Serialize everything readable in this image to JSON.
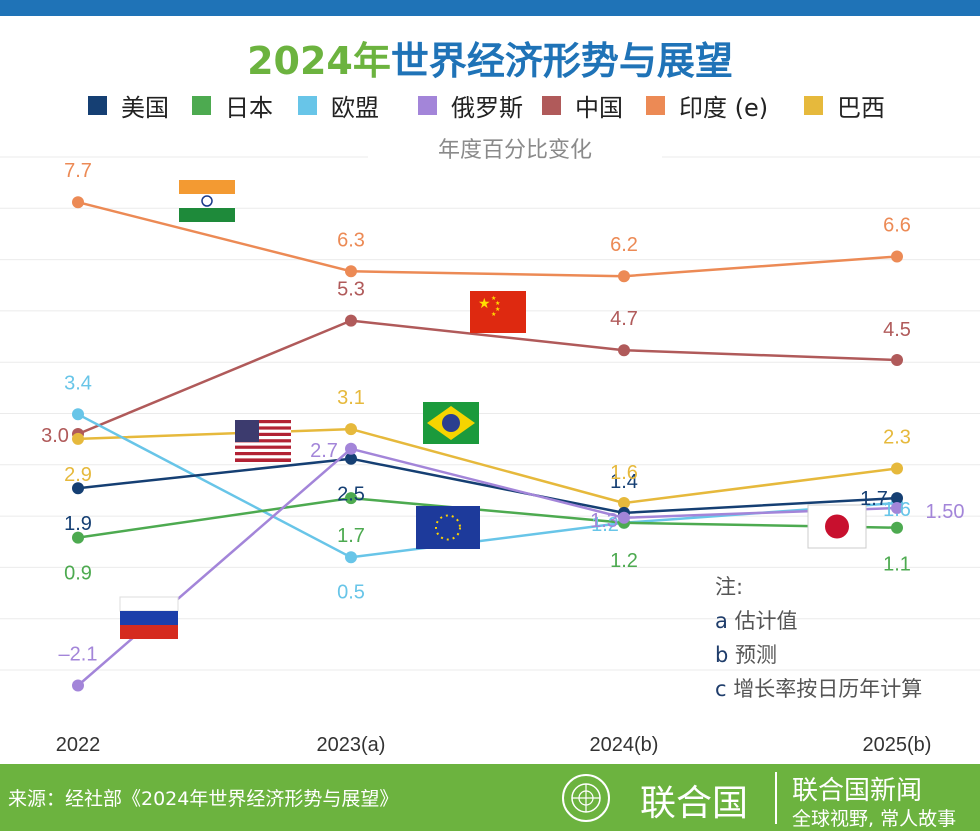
{
  "header": {
    "title_year": "2024年",
    "title_rest": "世界经济形势与展望",
    "subtitle": "年度百分比变化"
  },
  "colors": {
    "us": "#153f73",
    "japan": "#4daa50",
    "eu": "#68c5e8",
    "russia": "#a385d9",
    "china": "#b05a5a",
    "india": "#ec8a55",
    "brazil": "#e6b93c"
  },
  "chart_data": {
    "type": "line",
    "title": "2024年世界经济形势与展望",
    "subtitle": "年度百分比变化",
    "x": [
      "2022",
      "2023(a)",
      "2024(b)",
      "2025(b)"
    ],
    "ylim": [
      -2.8,
      8.8
    ],
    "series": [
      {
        "name": "美国",
        "key": "us",
        "values": [
          1.9,
          2.5,
          1.4,
          1.7
        ],
        "labels": [
          "1.9",
          "2.5",
          "1.4",
          "1.7"
        ]
      },
      {
        "name": "日本",
        "key": "japan",
        "values": [
          0.9,
          1.7,
          1.2,
          1.1
        ],
        "labels": [
          "0.9",
          "1.7",
          "1.2",
          "1.1"
        ]
      },
      {
        "name": "欧盟",
        "key": "eu",
        "values": [
          3.4,
          0.5,
          1.2,
          1.6
        ],
        "labels": [
          "3.4",
          "0.5",
          "1.2",
          "1.6"
        ]
      },
      {
        "name": "俄罗斯",
        "key": "russia",
        "values": [
          -2.1,
          2.7,
          1.3,
          1.5
        ],
        "labels": [
          "–2.1",
          "2.7",
          "1.3",
          "1.50"
        ]
      },
      {
        "name": "中国",
        "key": "china",
        "values": [
          3.0,
          5.3,
          4.7,
          4.5
        ],
        "labels": [
          "3.0",
          "5.3",
          "4.7",
          "4.5"
        ]
      },
      {
        "name": "印度 (e)",
        "key": "india",
        "values": [
          7.7,
          6.3,
          6.2,
          6.6
        ],
        "labels": [
          "7.7",
          "6.3",
          "6.2",
          "6.6"
        ]
      },
      {
        "name": "巴西",
        "key": "brazil",
        "values": [
          2.9,
          3.1,
          1.6,
          2.3
        ],
        "labels": [
          "2.9",
          "3.1",
          "1.6",
          "2.3"
        ]
      }
    ]
  },
  "notes": {
    "heading": "注:",
    "items": [
      {
        "key": "a",
        "text": "估计值"
      },
      {
        "key": "b",
        "text": "预测"
      },
      {
        "key": "c",
        "text": "增长率按日历年计算"
      }
    ]
  },
  "footer": {
    "source": "来源：经社部《2024年世界经济形势与展望》",
    "un_name": "联合国",
    "news_name": "联合国新闻",
    "slogan": "全球视野, 常人故事"
  }
}
